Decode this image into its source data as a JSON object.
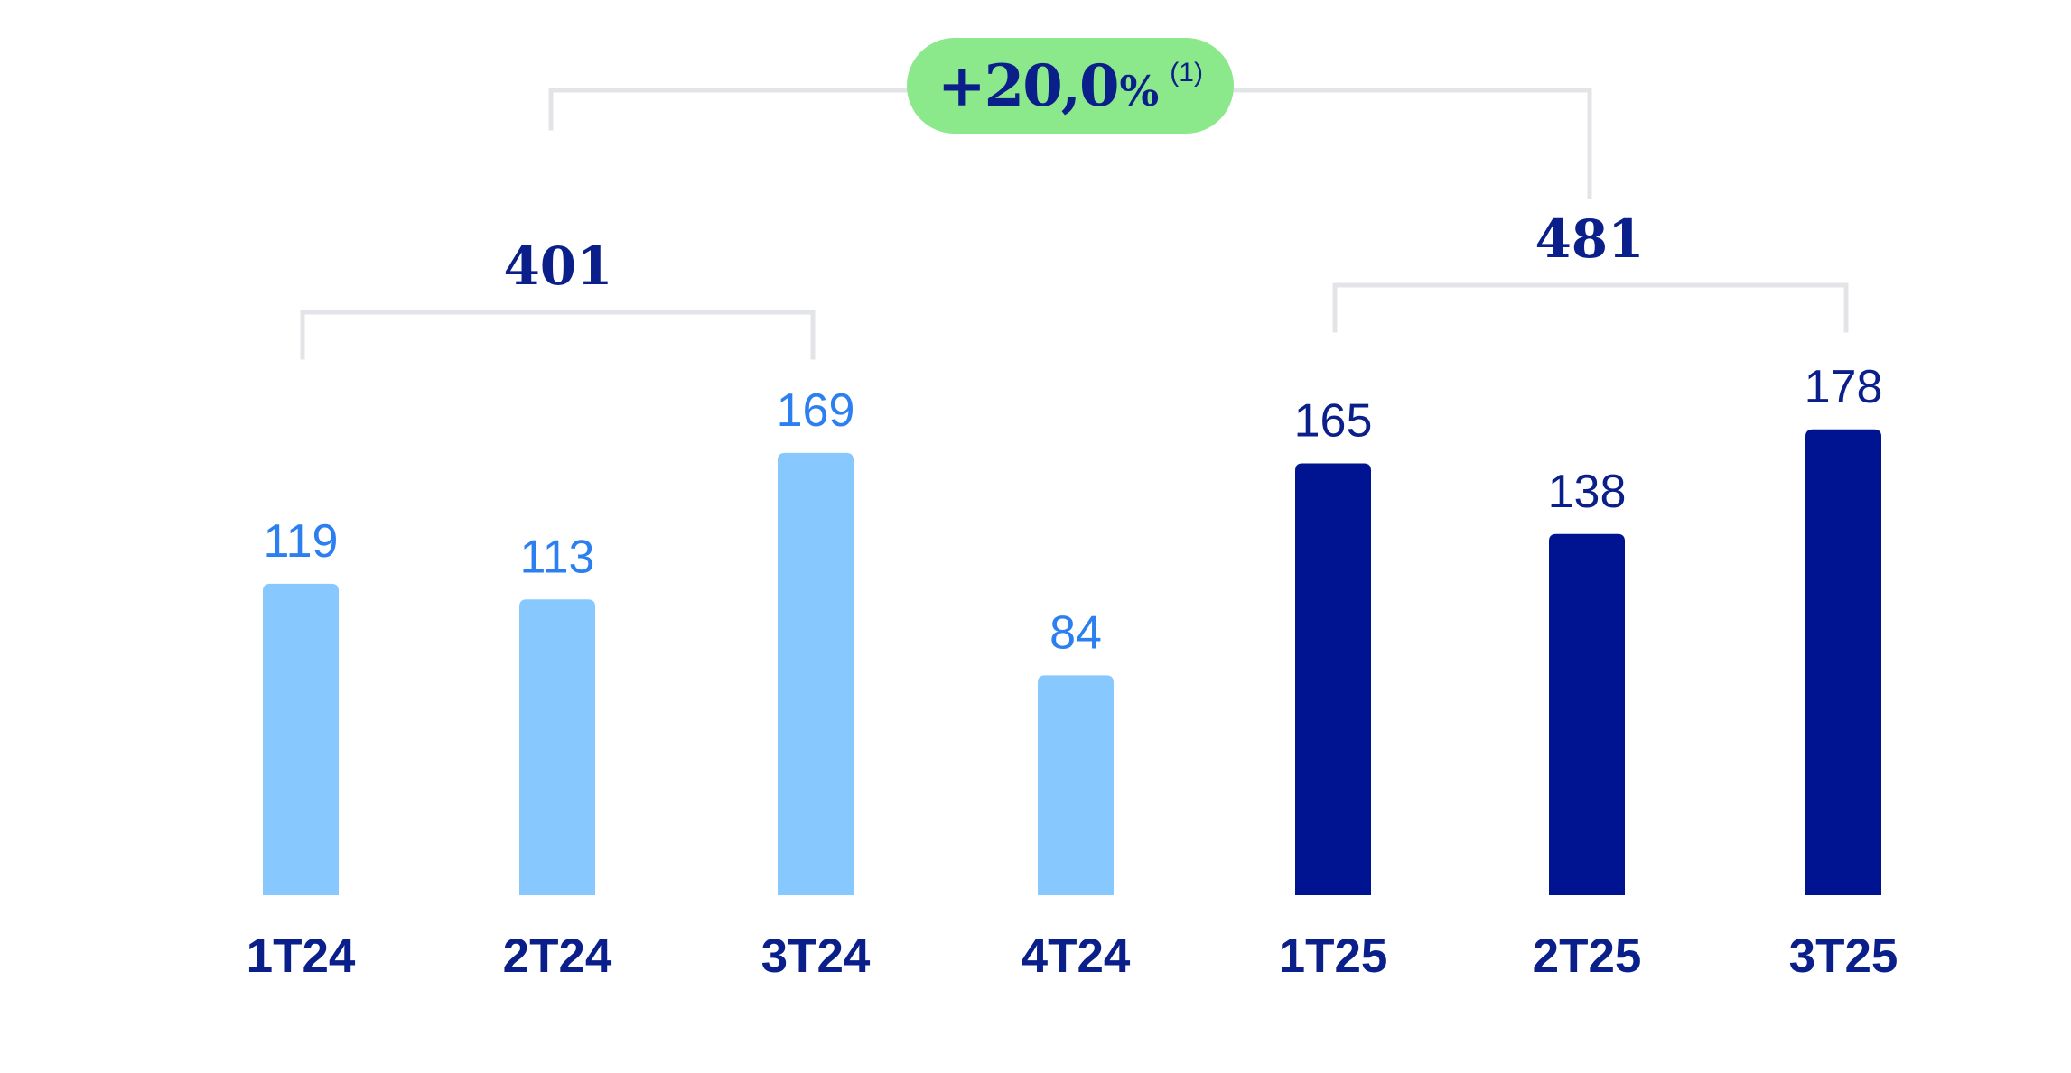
{
  "colors": {
    "bar_2024": "#87c8ff",
    "bar_2025": "#001391",
    "label_2024": "#2b7ff0",
    "label_2025": "#0b1f8a",
    "category_label": "#0b1f8a",
    "total_label": "#0b1f8a",
    "growth_bg": "#8be88b",
    "growth_text": "#0b1f8a",
    "bracket": "#e2e4e8"
  },
  "growth": {
    "value": "+20,0",
    "unit": "%",
    "note": "(1)"
  },
  "totals": [
    {
      "label": "401"
    },
    {
      "label": "481"
    }
  ],
  "chart_data": {
    "type": "bar",
    "categories": [
      "1T24",
      "2T24",
      "3T24",
      "4T24",
      "1T25",
      "2T25",
      "3T25"
    ],
    "values": [
      119,
      113,
      169,
      84,
      165,
      138,
      178
    ],
    "value_labels": [
      "119",
      "113",
      "169",
      "84",
      "165",
      "138",
      "178"
    ],
    "groups": [
      "2024",
      "2024",
      "2024",
      "2024",
      "2025",
      "2025",
      "2025"
    ],
    "title": "",
    "xlabel": "",
    "ylabel": "",
    "grid": false,
    "legend": "none"
  }
}
